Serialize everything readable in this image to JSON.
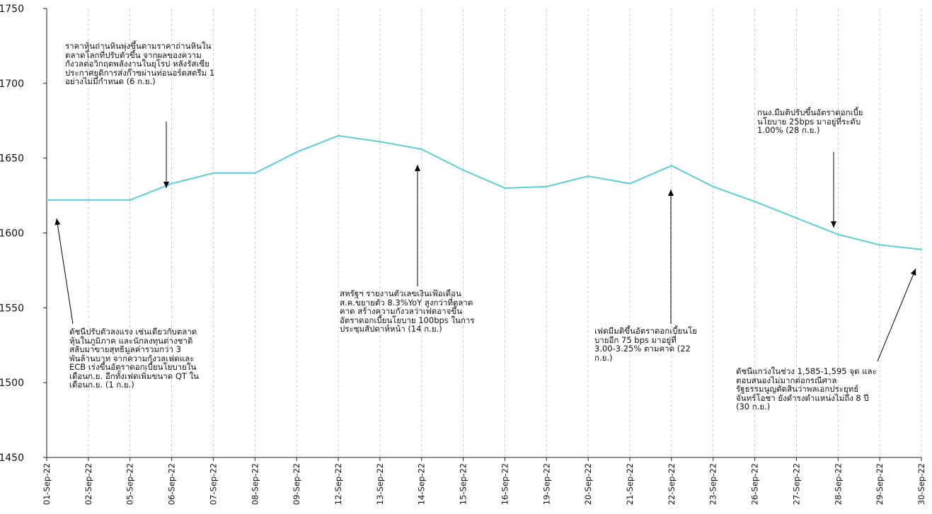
{
  "chart_data": {
    "type": "line",
    "title": "",
    "xlabel": "",
    "ylabel": "",
    "ylim": [
      1450,
      1750
    ],
    "yticks": [
      1450,
      1500,
      1550,
      1600,
      1650,
      1700,
      1750
    ],
    "grid": "vertical-dashed",
    "line_color": "#5bcfd6",
    "categories": [
      "01-Sep-22",
      "02-Sep-22",
      "05-Sep-22",
      "06-Sep-22",
      "07-Sep-22",
      "08-Sep-22",
      "09-Sep-22",
      "12-Sep-22",
      "13-Sep-22",
      "14-Sep-22",
      "15-Sep-22",
      "16-Sep-22",
      "19-Sep-22",
      "20-Sep-22",
      "21-Sep-22",
      "22-Sep-22",
      "23-Sep-22",
      "26-Sep-22",
      "27-Sep-22",
      "28-Sep-22",
      "29-Sep-22",
      "30-Sep-22"
    ],
    "values": [
      1622,
      1622,
      1622,
      1633,
      1640,
      1640,
      1654,
      1665,
      1661,
      1656,
      1642,
      1630,
      1631,
      1638,
      1633,
      1645,
      1631,
      1621,
      1610,
      1599,
      1592,
      1589
    ],
    "annotations": [
      {
        "id": "sep06",
        "category": "06-Sep-22",
        "text": "ราคาหุ้นถ่านหินพุ่งขึ้นตามราคาถ่านหินใน\nตลาดโลกที่ปรับตัวขึ้น จากผลของความ\nกังวลต่อวิกฤตพลังงานในยุโรป หลังรัสเซีย\nประกาศยุติการส่งก๊าซผ่านท่อนอร์ดสตรีม 1\nอย่างไม่มีกำหนด (6 ก.ย.)"
      },
      {
        "id": "sep01",
        "category": "01-Sep-22",
        "text": "ดัชนีปรับตัวลงแรง เช่นเดียวกับตลาด\nหุ้นในภูมิภาค และนักลงทุนต่างชาติ\nสลับมาขายสุทธิมูลค่ารวมกว่า 3\nพันล้านบาท จากความกังวลเฟดและ\nECB เร่งขึ้นอัตราดอกเบี้ยนโยบายใน\nเดือนก.ย. อีกทั้งเฟดเพิ่มขนาด QT ใน\nเดือนก.ย. (1 ก.ย.)"
      },
      {
        "id": "sep14",
        "category": "14-Sep-22",
        "text": "สหรัฐฯ รายงานตัวเลขเงินเฟ้อเดือน\nส.ค.ขยายตัว 8.3%YoY สูงกว่าที่ตลาด\nคาด สร้างความกังวลว่าเฟดอาจขึ้น\nอัตราดอกเบี้ยนโยบาย 100bps ในการ\nประชุมสัปดาห์หน้า (14 ก.ย.)"
      },
      {
        "id": "sep22",
        "category": "22-Sep-22",
        "text": "เฟดมีมติขึ้นอัตราดอกเบี้ยนโย\nบายอีก 75 bps มาอยู่ที่\n3.00-3.25% ตามคาด (22\nก.ย.)"
      },
      {
        "id": "sep28",
        "category": "28-Sep-22",
        "text": "กนง.มีมติปรับขึ้นอัตราดอกเบี้ย\nนโยบาย 25bps มาอยู่ที่ระดับ\n1.00% (28 ก.ย.)"
      },
      {
        "id": "sep30",
        "category": "30-Sep-22",
        "text": "ดัชนีแกว่งในช่วง 1,585-1,595 จุด และ\nตอบสนองไม่มากต่อกรณีศาล\nรัฐธรรมนูญตัดสินว่าพลเอกประยุทธ์\nจันทร์โอชา ยังดำรงตำแหน่งไม่ถึง 8 ปี\n(30 ก.ย.)"
      }
    ]
  }
}
